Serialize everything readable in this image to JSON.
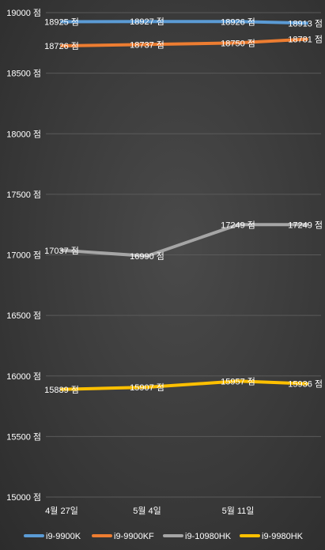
{
  "chart_data": {
    "type": "line",
    "categories": [
      "4월 27일",
      "5월 4일",
      "5월 11일",
      ""
    ],
    "ylim": [
      15000,
      19000
    ],
    "yticks": [
      15000,
      15500,
      16000,
      16500,
      17000,
      17500,
      18000,
      18500,
      19000
    ],
    "ytick_labels": [
      "15000 점",
      "15500 점",
      "16000 점",
      "16500 점",
      "17000 점",
      "17500 점",
      "18000 점",
      "18500 점",
      "19000 점"
    ],
    "grid": true,
    "legend_position": "bottom",
    "series": [
      {
        "name": "i9-9900K",
        "color": "#5b9bd5",
        "values": [
          18925,
          18927,
          18926,
          18913
        ],
        "labels": [
          "18925 점",
          "18927 점",
          "18926 점",
          "18913 점"
        ]
      },
      {
        "name": "i9-9900KF",
        "color": "#ed7d31",
        "values": [
          18726,
          18737,
          18750,
          18781
        ],
        "labels": [
          "18726 점",
          "18737 점",
          "18750 점",
          "18781 점"
        ]
      },
      {
        "name": "i9-10980HK",
        "color": "#a5a5a5",
        "values": [
          17037,
          16990,
          17249,
          17249
        ],
        "labels": [
          "17037 점",
          "16990 점",
          "17249 점",
          "17249 점"
        ]
      },
      {
        "name": "i9-9980HK",
        "color": "#ffc000",
        "values": [
          15889,
          15907,
          15957,
          15936
        ],
        "labels": [
          "15889 점",
          "15907 점",
          "15957 점",
          "15936 점"
        ]
      }
    ]
  }
}
